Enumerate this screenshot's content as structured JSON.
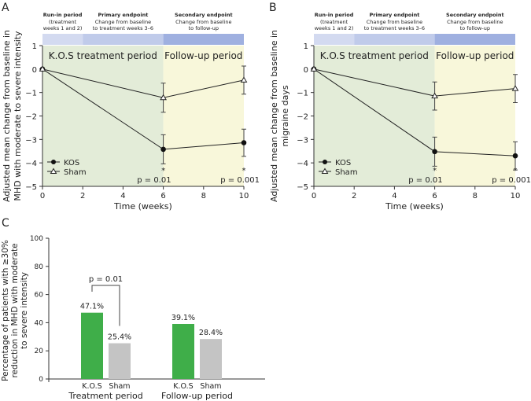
{
  "chart_data": [
    {
      "panel": "A",
      "type": "line",
      "xlabel": "Time (weeks)",
      "ylabel": [
        "Adjusted mean change from baseline in",
        "MHD with moderate to severe intensity"
      ],
      "xlim": [
        0,
        10
      ],
      "ylim": [
        -5,
        1
      ],
      "xticks": [
        0,
        2,
        4,
        6,
        8,
        10
      ],
      "yticks": [
        1,
        0,
        -1,
        -2,
        -3,
        -4,
        -5
      ],
      "periods": [
        {
          "label": "K.O.S treatment period",
          "range": [
            0,
            6
          ],
          "color": "#e3ecd8"
        },
        {
          "label": "Follow-up period",
          "range": [
            6,
            10
          ],
          "color": "#f8f7da"
        }
      ],
      "header": [
        {
          "title": "Run-in period",
          "sub": [
            "(treatment",
            "weeks 1 and 2)"
          ],
          "range": [
            0,
            2
          ],
          "color": "#d3daf0"
        },
        {
          "title": "Primary endpoint",
          "sub": [
            "Change from baseline",
            "to treatment weeks 3–6"
          ],
          "range": [
            2,
            6
          ],
          "color": "#c0cbea"
        },
        {
          "title": "Secondary endpoint",
          "sub": [
            "Change from baseline",
            "to follow-up"
          ],
          "range": [
            6,
            10
          ],
          "color": "#9fb0e0"
        }
      ],
      "series": [
        {
          "name": "KOS",
          "marker": "circle",
          "x": [
            0,
            6,
            10
          ],
          "y": [
            0,
            -3.42,
            -3.14
          ],
          "err": [
            0,
            0.62,
            0.58
          ]
        },
        {
          "name": "Sham",
          "marker": "triangle",
          "x": [
            0,
            6,
            10
          ],
          "y": [
            0,
            -1.22,
            -0.47
          ],
          "err": [
            0,
            0.62,
            0.6
          ]
        }
      ],
      "annotations": [
        {
          "x": 6,
          "star": "*",
          "p": "p = 0.01"
        },
        {
          "x": 10,
          "star": "*",
          "p": "p = 0.001"
        }
      ],
      "legend": "bottom-left"
    },
    {
      "panel": "B",
      "type": "line",
      "xlabel": "Time (weeks)",
      "ylabel": [
        "Adjusted mean change from baseline in",
        "migraine days"
      ],
      "xlim": [
        0,
        10
      ],
      "ylim": [
        -5,
        1
      ],
      "xticks": [
        0,
        2,
        4,
        6,
        8,
        10
      ],
      "yticks": [
        1,
        0,
        -1,
        -2,
        -3,
        -4,
        -5
      ],
      "periods": [
        {
          "label": "K.O.S treatment period",
          "range": [
            0,
            6
          ],
          "color": "#e3ecd8"
        },
        {
          "label": "Follow-up period",
          "range": [
            6,
            10
          ],
          "color": "#f8f7da"
        }
      ],
      "header": [
        {
          "title": "Run-in period",
          "sub": [
            "(treatment",
            "weeks 1 and 2)"
          ],
          "range": [
            0,
            2
          ],
          "color": "#d3daf0"
        },
        {
          "title": "Primary endpoint",
          "sub": [
            "Change from baseline",
            "to treatment weeks 3–6"
          ],
          "range": [
            2,
            6
          ],
          "color": "#c0cbea"
        },
        {
          "title": "Secondary endpoint",
          "sub": [
            "Change from baseline",
            "to follow-up"
          ],
          "range": [
            6,
            10
          ],
          "color": "#9fb0e0"
        }
      ],
      "series": [
        {
          "name": "KOS",
          "marker": "circle",
          "x": [
            0,
            6,
            10
          ],
          "y": [
            0,
            -3.52,
            -3.7
          ],
          "err": [
            0,
            0.62,
            0.6
          ]
        },
        {
          "name": "Sham",
          "marker": "triangle",
          "x": [
            0,
            6,
            10
          ],
          "y": [
            0,
            -1.15,
            -0.83
          ],
          "err": [
            0,
            0.6,
            0.6
          ]
        }
      ],
      "annotations": [
        {
          "x": 6,
          "star": "*",
          "p": "p = 0.01"
        },
        {
          "x": 10,
          "star": "*",
          "p": "p = 0.001"
        }
      ],
      "legend": "bottom-left"
    },
    {
      "panel": "C",
      "type": "bar",
      "ylabel": [
        "Percentage of patients with ≥30%",
        "reduction in MHD with moderate",
        "to severe intensity"
      ],
      "ylim": [
        0,
        100
      ],
      "yticks": [
        0,
        20,
        40,
        60,
        80,
        100
      ],
      "groups": [
        {
          "label": "Treatment period",
          "bars": [
            {
              "name": "K.O.S",
              "value": 47.1,
              "label": "47.1%",
              "color": "#3fae49"
            },
            {
              "name": "Sham",
              "value": 25.4,
              "label": "25.4%",
              "color": "#c4c4c4"
            }
          ]
        },
        {
          "label": "Follow-up period",
          "bars": [
            {
              "name": "K.O.S",
              "value": 39.1,
              "label": "39.1%",
              "color": "#3fae49"
            },
            {
              "name": "Sham",
              "value": 28.4,
              "label": "28.4%",
              "color": "#c4c4c4"
            }
          ]
        }
      ],
      "annotations": [
        {
          "group": 0,
          "p": "p = 0.01"
        }
      ]
    }
  ]
}
